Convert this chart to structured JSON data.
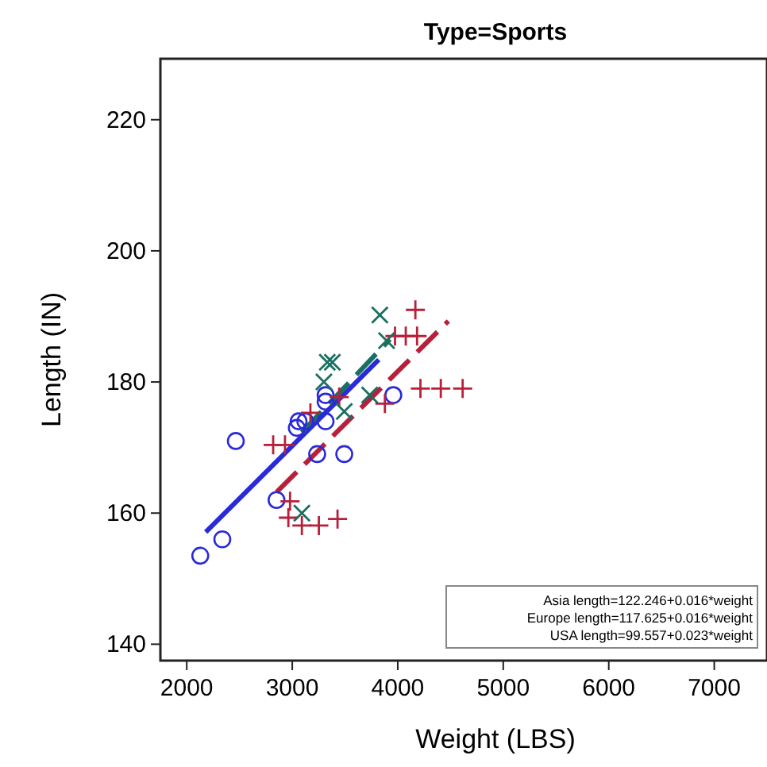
{
  "chart_data": {
    "type": "scatter",
    "title": "Type=Sports",
    "xlabel": "Weight (LBS)",
    "ylabel": "Length (IN)",
    "xlim": [
      1750,
      7500
    ],
    "ylim": [
      137.5,
      229.3
    ],
    "xticks": [
      2000,
      3000,
      4000,
      5000,
      6000,
      7000
    ],
    "yticks": [
      140,
      160,
      180,
      200,
      220
    ],
    "grid": false,
    "annotations": [
      "Asia length=122.246+0.016*weight",
      "Europe length=117.625+0.016*weight",
      "USA length=99.557+0.023*weight"
    ],
    "series": [
      {
        "color": "#2a2ad8",
        "marker": "circle",
        "x": [
          2128,
          2337,
          2465,
          2851,
          3043,
          3060,
          3124,
          3236,
          3316,
          3316,
          3316,
          3493,
          3958
        ],
        "values": [
          153.5,
          156,
          171,
          162,
          173,
          174,
          174,
          169,
          174,
          177,
          178,
          169,
          178
        ]
      },
      {
        "color": "#b8203a",
        "marker": "plus",
        "x": [
          2819,
          2931,
          2963,
          2979,
          3091,
          3172,
          3252,
          3429,
          3445,
          3878,
          3974,
          4076,
          4167,
          4183,
          4215,
          4408,
          4615
        ],
        "values": [
          170.4,
          170.4,
          159.3,
          161.8,
          158.1,
          175.3,
          158.1,
          159.1,
          177.7,
          176.7,
          187,
          187,
          191,
          187,
          179,
          179,
          179
        ]
      },
      {
        "color": "#1a7060",
        "marker": "cross",
        "x": [
          3091,
          3300,
          3332,
          3380,
          3493,
          3734,
          3830,
          3894
        ],
        "values": [
          160,
          180,
          183,
          183,
          175.5,
          178,
          190.2,
          186.3
        ]
      },
      {
        "type": "line",
        "color": "#2a2ad8",
        "line_style": "solid",
        "x": [
          2180,
          3820
        ],
        "values": [
          157.1,
          183.4
        ]
      },
      {
        "type": "line",
        "color": "#b8203a",
        "line_style": "dashed",
        "x": [
          2851,
          4480
        ],
        "values": [
          163.2,
          189.3
        ]
      },
      {
        "type": "line",
        "color": "#1a7060",
        "line_style": "dashed",
        "x": [
          3090,
          3926
        ],
        "values": [
          172.3,
          186.5
        ]
      }
    ]
  }
}
